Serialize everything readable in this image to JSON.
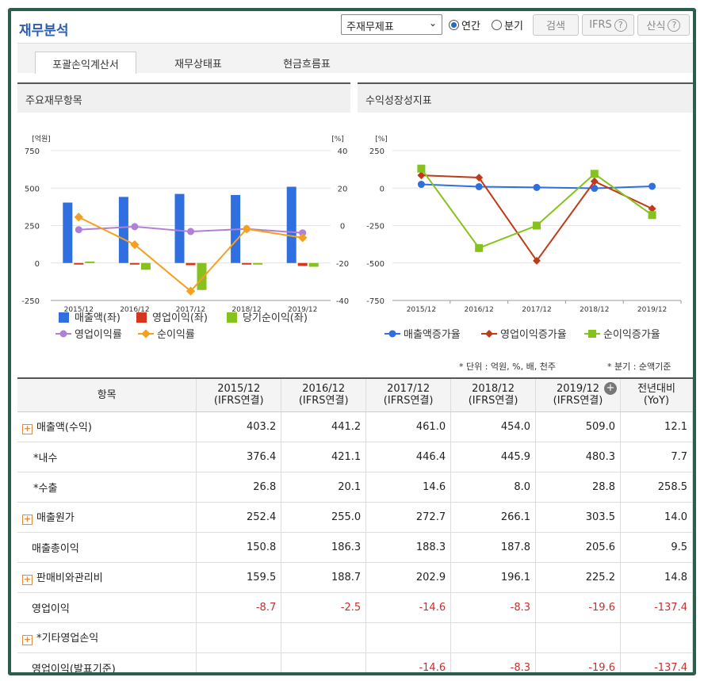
{
  "header": {
    "title": "재무분석",
    "select_value": "주재무제표",
    "radio_annual": "연간",
    "radio_quarter": "분기",
    "search_button": "검색",
    "ifrs_button": "IFRS",
    "formula_button": "산식",
    "help_glyph": "?"
  },
  "tabs": [
    {
      "label": "포괄손익계산서",
      "active": true
    },
    {
      "label": "재무상태표",
      "active": false
    },
    {
      "label": "현금흐름표",
      "active": false
    }
  ],
  "panels": {
    "left_title": "주요재무항목",
    "right_title": "수익성장성지표"
  },
  "chart_data": [
    {
      "type": "bar",
      "title": "주요재무항목",
      "categories": [
        "2015/12",
        "2016/12",
        "2017/12",
        "2018/12",
        "2019/12"
      ],
      "y_left_unit": "[억원]",
      "y_right_unit": "[%]",
      "y_left_ticks": [
        "750",
        "500",
        "250",
        "0",
        "-250"
      ],
      "y_right_ticks": [
        "40",
        "20",
        "0",
        "-20",
        "-40"
      ],
      "ylim_left": [
        -250,
        750
      ],
      "ylim_right": [
        -40,
        40
      ],
      "bar_series": [
        {
          "name": "매출액(좌)",
          "color": "#2f6fe0",
          "values": [
            403.2,
            441.2,
            461.0,
            454.0,
            509.0
          ]
        },
        {
          "name": "영업이익(좌)",
          "color": "#d6361e",
          "values": [
            -8.7,
            -2.5,
            -14.6,
            -8.3,
            -19.6
          ]
        },
        {
          "name": "당기순이익(좌)",
          "color": "#86c21e",
          "values": [
            10,
            -45,
            -180,
            -10,
            -25
          ]
        }
      ],
      "line_series": [
        {
          "name": "영업이익률",
          "color": "#b07fd6",
          "values": [
            -2.2,
            -0.6,
            -3.2,
            -1.8,
            -3.9
          ]
        },
        {
          "name": "순이익률",
          "color": "#f5a020",
          "values": [
            4.5,
            -10.2,
            -35.0,
            -1.8,
            -6.5
          ]
        }
      ],
      "legend_row1": [
        "매출액(좌)",
        "영업이익(좌)",
        "당기순이익(좌)"
      ],
      "legend_row2": [
        "영업이익률",
        "순이익률"
      ]
    },
    {
      "type": "line",
      "title": "수익성장성지표",
      "categories": [
        "2015/12",
        "2016/12",
        "2017/12",
        "2018/12",
        "2019/12"
      ],
      "y_unit": "[%]",
      "y_ticks": [
        "250",
        "0",
        "-250",
        "-500",
        "-750"
      ],
      "ylim": [
        -750,
        250
      ],
      "series": [
        {
          "name": "매출액증가율",
          "color": "#2f6fe0",
          "marker": "circle",
          "values": [
            25,
            9.4,
            4.5,
            -1.5,
            12.1
          ]
        },
        {
          "name": "영업이익증가율",
          "color": "#c0391b",
          "marker": "diamond",
          "values": [
            85,
            70,
            -485,
            45,
            -137.4
          ]
        },
        {
          "name": "순이익증가율",
          "color": "#86c21e",
          "marker": "square",
          "values": [
            130,
            -400,
            -250,
            95,
            -180
          ]
        }
      ]
    }
  ],
  "notes": {
    "unit": "* 단위 : 억원, %, 배, 천주",
    "quarter": "* 분기 : 순액기준"
  },
  "table": {
    "headers": [
      {
        "l1": "항목",
        "l2": ""
      },
      {
        "l1": "2015/12",
        "l2": "(IFRS연결)"
      },
      {
        "l1": "2016/12",
        "l2": "(IFRS연결)"
      },
      {
        "l1": "2017/12",
        "l2": "(IFRS연결)"
      },
      {
        "l1": "2018/12",
        "l2": "(IFRS연결)"
      },
      {
        "l1": "2019/12",
        "l2": "(IFRS연결)"
      },
      {
        "l1": "전년대비",
        "l2": "(YoY)"
      }
    ],
    "expand_glyph": "+",
    "rows": [
      {
        "label": "매출액(수익)",
        "expand": true,
        "indent": 0,
        "values": [
          "403.2",
          "441.2",
          "461.0",
          "454.0",
          "509.0",
          "12.1"
        ],
        "neg": false
      },
      {
        "label": "*내수",
        "expand": false,
        "indent": 1,
        "values": [
          "376.4",
          "421.1",
          "446.4",
          "445.9",
          "480.3",
          "7.7"
        ],
        "neg": false
      },
      {
        "label": "*수출",
        "expand": false,
        "indent": 1,
        "values": [
          "26.8",
          "20.1",
          "14.6",
          "8.0",
          "28.8",
          "258.5"
        ],
        "neg": false
      },
      {
        "label": "매출원가",
        "expand": true,
        "indent": 0,
        "values": [
          "252.4",
          "255.0",
          "272.7",
          "266.1",
          "303.5",
          "14.0"
        ],
        "neg": false
      },
      {
        "label": "매출총이익",
        "expand": false,
        "indent": 2,
        "values": [
          "150.8",
          "186.3",
          "188.3",
          "187.8",
          "205.6",
          "9.5"
        ],
        "neg": false
      },
      {
        "label": "판매비와관리비",
        "expand": true,
        "indent": 0,
        "values": [
          "159.5",
          "188.7",
          "202.9",
          "196.1",
          "225.2",
          "14.8"
        ],
        "neg": false
      },
      {
        "label": "영업이익",
        "expand": false,
        "indent": 2,
        "values": [
          "-8.7",
          "-2.5",
          "-14.6",
          "-8.3",
          "-19.6",
          "-137.4"
        ],
        "neg": true
      },
      {
        "label": "*기타영업손익",
        "expand": true,
        "indent": 0,
        "values": [
          "",
          "",
          "",
          "",
          "",
          ""
        ],
        "neg": false
      },
      {
        "label": "영업이익(발표기준)",
        "expand": false,
        "indent": 2,
        "values": [
          "",
          "",
          "-14.6",
          "-8.3",
          "-19.6",
          "-137.4"
        ],
        "neg": true
      }
    ]
  }
}
